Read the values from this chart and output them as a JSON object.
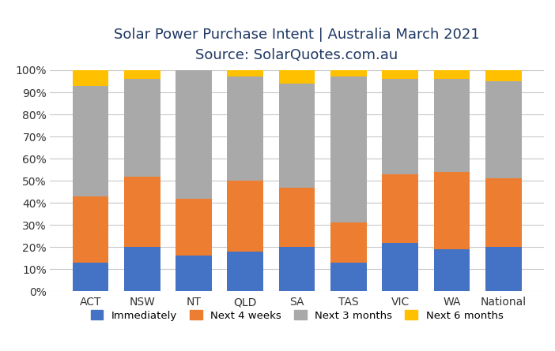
{
  "categories": [
    "ACT",
    "NSW",
    "NT",
    "QLD",
    "SA",
    "TAS",
    "VIC",
    "WA",
    "National"
  ],
  "series": {
    "Immediately": [
      13,
      20,
      16,
      18,
      20,
      13,
      22,
      19,
      20
    ],
    "Next 4 weeks": [
      30,
      32,
      26,
      32,
      27,
      18,
      31,
      35,
      31
    ],
    "Next 3 months": [
      50,
      44,
      58,
      47,
      47,
      66,
      43,
      42,
      44
    ],
    "Next 6 months": [
      7,
      4,
      0,
      3,
      6,
      3,
      4,
      4,
      5
    ]
  },
  "colors": {
    "Immediately": "#4472C4",
    "Next 4 weeks": "#ED7D31",
    "Next 3 months": "#A9A9A9",
    "Next 6 months": "#FFC000"
  },
  "title_line1": "Solar Power Purchase Intent | Australia March 2021",
  "title_line2": "Source: SolarQuotes.com.au",
  "ylabel_ticks": [
    "0%",
    "10%",
    "20%",
    "30%",
    "40%",
    "50%",
    "60%",
    "70%",
    "80%",
    "90%",
    "100%"
  ],
  "ylim": [
    0,
    100
  ],
  "background_color": "#FFFFFF",
  "grid_color": "#C8C8C8",
  "bar_width": 0.7,
  "title_color": "#1F3864",
  "tick_color": "#333333",
  "title1_fontsize": 13,
  "title2_fontsize": 12,
  "tick_fontsize": 10,
  "legend_fontsize": 9.5
}
